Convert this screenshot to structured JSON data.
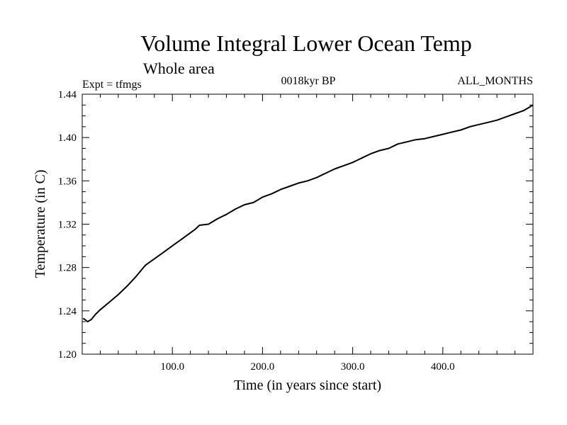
{
  "chart_data": {
    "type": "line",
    "title": "Volume Integral Lower Ocean Temp",
    "subtitle": "Whole area",
    "left_label": "Expt = tfmgs",
    "center_label": "0018kyr BP",
    "right_label": "ALL_MONTHS",
    "xlabel": "Time (in years since start)",
    "ylabel": "Temperature (in C)",
    "xlim": [
      0,
      500
    ],
    "ylim": [
      1.2,
      1.44
    ],
    "xticks": [
      100,
      200,
      300,
      400
    ],
    "xtick_labels": [
      "100.0",
      "200.0",
      "300.0",
      "400.0"
    ],
    "yticks": [
      1.2,
      1.24,
      1.28,
      1.32,
      1.36,
      1.4,
      1.44
    ],
    "ytick_labels": [
      "1.20",
      "1.24",
      "1.28",
      "1.32",
      "1.36",
      "1.40",
      "1.44"
    ],
    "grid": false,
    "line_color": "#000000",
    "series": [
      {
        "x": [
          1,
          3,
          6,
          10,
          15,
          20,
          30,
          40,
          50,
          60,
          70,
          80,
          90,
          100,
          110,
          120,
          125,
          130,
          140,
          150,
          160,
          170,
          180,
          190,
          200,
          210,
          220,
          230,
          240,
          250,
          260,
          270,
          280,
          290,
          300,
          310,
          320,
          330,
          340,
          350,
          360,
          370,
          380,
          390,
          400,
          410,
          420,
          430,
          440,
          450,
          460,
          470,
          480,
          490,
          500
        ],
        "y": [
          1.233,
          1.232,
          1.23,
          1.232,
          1.237,
          1.241,
          1.248,
          1.255,
          1.263,
          1.272,
          1.282,
          1.288,
          1.294,
          1.3,
          1.306,
          1.312,
          1.315,
          1.319,
          1.32,
          1.325,
          1.329,
          1.334,
          1.338,
          1.34,
          1.345,
          1.348,
          1.352,
          1.355,
          1.358,
          1.36,
          1.363,
          1.367,
          1.371,
          1.374,
          1.377,
          1.381,
          1.385,
          1.388,
          1.39,
          1.394,
          1.396,
          1.398,
          1.399,
          1.401,
          1.403,
          1.405,
          1.407,
          1.41,
          1.412,
          1.414,
          1.416,
          1.419,
          1.422,
          1.425,
          1.43
        ]
      }
    ]
  }
}
